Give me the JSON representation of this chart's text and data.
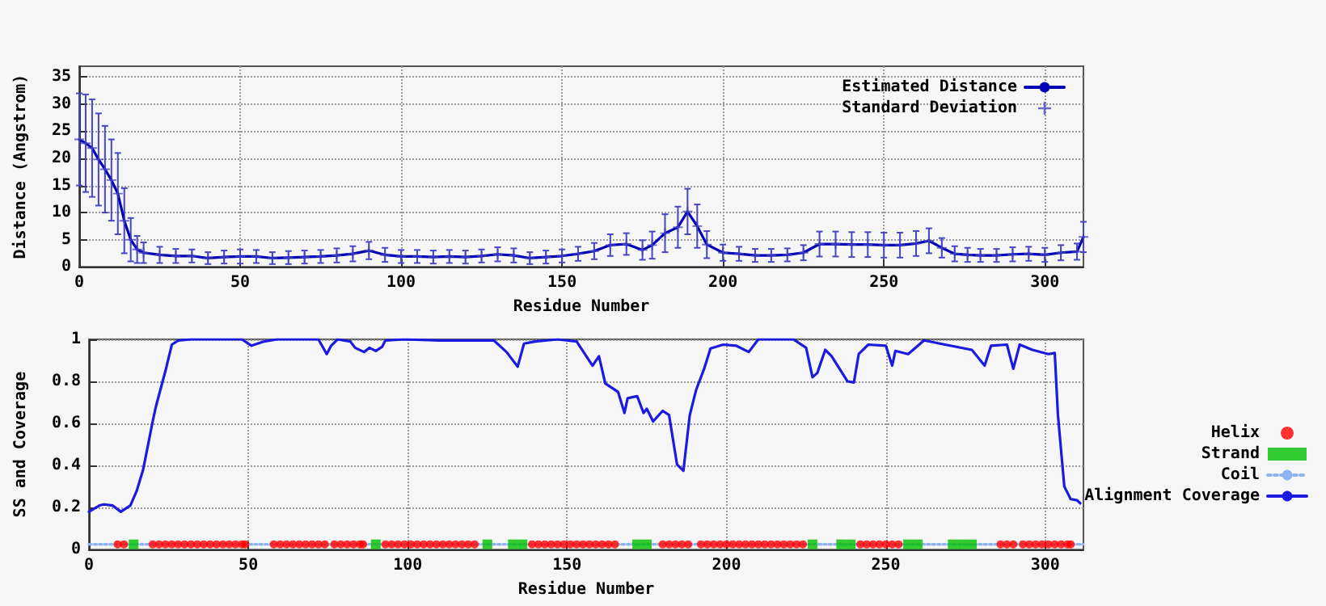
{
  "chart_data": [
    {
      "type": "line",
      "xlabel": "Residue Number",
      "ylabel": "Distance (Angstrom)",
      "xlim": [
        0,
        312
      ],
      "xticks": [
        0,
        50,
        100,
        150,
        200,
        250,
        300
      ],
      "ylim": [
        0,
        37
      ],
      "yticks": [
        0,
        5,
        10,
        15,
        20,
        25,
        30,
        35
      ],
      "grid": true,
      "legend": "top right",
      "series": [
        {
          "name": "Estimated Distance",
          "color": "#0000b4",
          "marker": "none",
          "x": [
            0,
            2,
            4,
            6,
            8,
            10,
            12,
            14,
            16,
            18,
            20,
            25,
            30,
            35,
            40,
            45,
            50,
            55,
            60,
            65,
            70,
            75,
            80,
            85,
            90,
            95,
            100,
            105,
            110,
            115,
            120,
            125,
            130,
            135,
            140,
            145,
            150,
            155,
            160,
            165,
            170,
            175,
            178,
            182,
            186,
            189,
            192,
            195,
            200,
            205,
            210,
            215,
            220,
            225,
            230,
            235,
            240,
            245,
            250,
            255,
            260,
            264,
            268,
            272,
            276,
            280,
            285,
            290,
            295,
            300,
            305,
            310,
            312
          ],
          "values": [
            23.5,
            22.8,
            21.9,
            19.8,
            18,
            16,
            13.5,
            8.5,
            5,
            3.2,
            2.6,
            2.2,
            2.0,
            2.0,
            1.6,
            1.8,
            1.9,
            1.9,
            1.6,
            1.7,
            1.8,
            1.9,
            2.1,
            2.4,
            3.0,
            2.2,
            1.9,
            1.9,
            1.8,
            1.9,
            1.8,
            2.0,
            2.3,
            2.1,
            1.6,
            1.8,
            2.0,
            2.4,
            2.9,
            4.0,
            4.2,
            3.1,
            4.0,
            6.2,
            7.3,
            10.2,
            7.5,
            4.1,
            2.6,
            2.4,
            2.1,
            2.1,
            2.2,
            2.6,
            4.2,
            4.2,
            4.1,
            4.1,
            4.0,
            4.0,
            4.3,
            4.8,
            3.5,
            2.4,
            2.2,
            2.1,
            2.1,
            2.3,
            2.4,
            2.2,
            2.6,
            2.8,
            5.5
          ]
        },
        {
          "name": "Standard Deviation",
          "type": "scatter",
          "color": "#4646c4",
          "marker": "cross",
          "x": [
            0,
            2,
            4,
            6,
            8,
            10,
            12,
            14,
            16,
            18,
            20,
            25,
            30,
            35,
            40,
            45,
            50,
            55,
            60,
            65,
            70,
            75,
            80,
            85,
            90,
            95,
            100,
            105,
            110,
            115,
            120,
            125,
            130,
            135,
            140,
            145,
            150,
            155,
            160,
            165,
            170,
            175,
            178,
            182,
            186,
            189,
            192,
            195,
            200,
            205,
            210,
            215,
            220,
            225,
            230,
            235,
            240,
            245,
            250,
            255,
            260,
            264,
            268,
            272,
            276,
            280,
            285,
            290,
            295,
            300,
            305,
            310,
            312
          ],
          "values": [
            23.5,
            22.8,
            21.9,
            19.8,
            18,
            16,
            13.5,
            8.5,
            5,
            3.2,
            2.6,
            2.2,
            2.0,
            2.0,
            1.6,
            1.8,
            1.9,
            1.9,
            1.6,
            1.7,
            1.8,
            1.9,
            2.1,
            2.4,
            3.0,
            2.2,
            1.9,
            1.9,
            1.8,
            1.9,
            1.8,
            2.0,
            2.3,
            2.1,
            1.6,
            1.8,
            2.0,
            2.4,
            2.9,
            4.0,
            4.2,
            3.1,
            4.0,
            6.2,
            7.3,
            10.2,
            7.5,
            4.1,
            2.6,
            2.4,
            2.1,
            2.1,
            2.2,
            2.6,
            4.2,
            4.2,
            4.1,
            4.1,
            4.0,
            4.0,
            4.3,
            4.8,
            3.5,
            2.4,
            2.2,
            2.1,
            2.1,
            2.3,
            2.4,
            2.2,
            2.6,
            2.8,
            5.5
          ],
          "errors": [
            8.5,
            9,
            9,
            8.5,
            8,
            7.5,
            7.5,
            6,
            4,
            2.5,
            1.9,
            1.5,
            1.3,
            1.2,
            1.1,
            1.2,
            1.3,
            1.2,
            1.1,
            1.2,
            1.2,
            1.2,
            1.3,
            1.4,
            1.6,
            1.3,
            1.2,
            1.2,
            1.2,
            1.2,
            1.2,
            1.2,
            1.3,
            1.3,
            1.1,
            1.2,
            1.2,
            1.3,
            1.5,
            2.0,
            2.0,
            1.8,
            2.5,
            3.5,
            3.8,
            4.2,
            4,
            2.5,
            1.5,
            1.3,
            1.2,
            1.2,
            1.2,
            1.4,
            2.3,
            2.3,
            2.3,
            2.3,
            2.3,
            2.3,
            2.3,
            2.3,
            1.8,
            1.4,
            1.3,
            1.2,
            1.2,
            1.3,
            1.3,
            1.3,
            1.4,
            1.5,
            2.8
          ]
        }
      ]
    },
    {
      "type": "line",
      "xlabel": "Residue Number",
      "ylabel": "SS and Coverage",
      "xlim": [
        0,
        312
      ],
      "xticks": [
        0,
        50,
        100,
        150,
        200,
        250,
        300
      ],
      "ylim": [
        0,
        1
      ],
      "yticks": [
        0,
        0.2,
        0.4,
        0.6,
        0.8,
        1
      ],
      "grid": true,
      "legend": "right",
      "series": [
        {
          "name": "Helix",
          "type": "scatter",
          "color": "#ff0000",
          "marker": "circle",
          "x": [
            9,
            11,
            20,
            22,
            24,
            26,
            28,
            30,
            32,
            34,
            36,
            38,
            40,
            42,
            44,
            46,
            48,
            49,
            58,
            60,
            62,
            64,
            66,
            68,
            70,
            72,
            74,
            77,
            79,
            81,
            83,
            85,
            86,
            93,
            95,
            97,
            99,
            101,
            103,
            105,
            107,
            109,
            111,
            113,
            115,
            117,
            119,
            121,
            139,
            141,
            143,
            145,
            147,
            149,
            151,
            153,
            155,
            157,
            159,
            161,
            163,
            165,
            180,
            182,
            184,
            186,
            188,
            192,
            194,
            196,
            198,
            200,
            202,
            204,
            206,
            208,
            210,
            212,
            214,
            216,
            218,
            220,
            222,
            224,
            242,
            244,
            246,
            248,
            250,
            252,
            254,
            286,
            288,
            290,
            293,
            295,
            297,
            299,
            301,
            303,
            305,
            307,
            308
          ],
          "values": [
            0.025,
            0.025,
            0.025,
            0.025,
            0.025,
            0.025,
            0.025,
            0.025,
            0.025,
            0.025,
            0.025,
            0.025,
            0.025,
            0.025,
            0.025,
            0.025,
            0.025,
            0.025,
            0.025,
            0.025,
            0.025,
            0.025,
            0.025,
            0.025,
            0.025,
            0.025,
            0.025,
            0.025,
            0.025,
            0.025,
            0.025,
            0.025,
            0.025,
            0.025,
            0.025,
            0.025,
            0.025,
            0.025,
            0.025,
            0.025,
            0.025,
            0.025,
            0.025,
            0.025,
            0.025,
            0.025,
            0.025,
            0.025,
            0.025,
            0.025,
            0.025,
            0.025,
            0.025,
            0.025,
            0.025,
            0.025,
            0.025,
            0.025,
            0.025,
            0.025,
            0.025,
            0.025,
            0.025,
            0.025,
            0.025,
            0.025,
            0.025,
            0.025,
            0.025,
            0.025,
            0.025,
            0.025,
            0.025,
            0.025,
            0.025,
            0.025,
            0.025,
            0.025,
            0.025,
            0.025,
            0.025,
            0.025,
            0.025,
            0.025,
            0.025,
            0.025,
            0.025,
            0.025,
            0.025,
            0.025,
            0.025,
            0.025,
            0.025,
            0.025,
            0.025,
            0.025,
            0.025,
            0.025,
            0.025,
            0.025,
            0.025,
            0.025,
            0.025
          ]
        },
        {
          "name": "Strand",
          "type": "scatter",
          "color": "#00c000",
          "marker": "square",
          "x": [
            14,
            90,
            125,
            133,
            136,
            172,
            175,
            227,
            236,
            239,
            257,
            260,
            271,
            274,
            277
          ],
          "values": [
            0.025,
            0.025,
            0.025,
            0.025,
            0.025,
            0.025,
            0.025,
            0.025,
            0.025,
            0.025,
            0.025,
            0.025,
            0.025,
            0.025,
            0.025
          ]
        },
        {
          "name": "Coil",
          "color": "#8cb4ee",
          "marker": "none",
          "line_style": "dotted",
          "x": [
            0,
            312
          ],
          "values": [
            0.025,
            0.025
          ]
        },
        {
          "name": "Alignment Coverage",
          "color": "#1a1ae0",
          "marker": "none",
          "x": [
            0,
            3.3,
            4.7,
            7.4,
            10,
            13,
            15,
            17,
            20,
            21,
            24,
            26,
            28,
            32,
            48,
            51,
            55,
            59,
            72,
            74.6,
            76,
            78,
            82,
            83.5,
            86.3,
            88,
            90,
            92,
            93,
            99,
            110,
            127,
            131,
            134.5,
            136.5,
            140,
            147,
            153,
            158,
            160,
            162,
            166,
            168,
            169,
            172,
            174,
            175,
            177,
            180,
            182,
            184.5,
            186.5,
            188.5,
            190.5,
            193,
            195,
            199,
            203,
            207,
            210,
            221,
            225,
            227,
            228.5,
            231,
            233,
            238,
            240,
            241.5,
            244.5,
            250,
            252,
            253,
            257,
            262,
            267,
            277,
            281,
            283,
            288,
            290,
            292,
            296,
            301,
            303,
            304,
            306,
            308,
            310,
            311
          ],
          "values": [
            0.18,
            0.21,
            0.215,
            0.21,
            0.18,
            0.21,
            0.28,
            0.38,
            0.61,
            0.68,
            0.85,
            0.975,
            0.995,
            1,
            1,
            0.97,
            0.99,
            1,
            1,
            0.93,
            0.97,
            1,
            0.99,
            0.96,
            0.94,
            0.96,
            0.945,
            0.965,
            0.995,
            1,
            0.995,
            0.995,
            0.94,
            0.87,
            0.98,
            0.99,
            1,
            0.99,
            0.875,
            0.92,
            0.79,
            0.75,
            0.65,
            0.72,
            0.73,
            0.65,
            0.67,
            0.61,
            0.66,
            0.64,
            0.405,
            0.375,
            0.64,
            0.76,
            0.86,
            0.957,
            0.975,
            0.97,
            0.94,
            1,
            1,
            0.96,
            0.82,
            0.84,
            0.95,
            0.92,
            0.8,
            0.795,
            0.93,
            0.975,
            0.97,
            0.875,
            0.945,
            0.93,
            0.995,
            0.98,
            0.95,
            0.875,
            0.97,
            0.975,
            0.86,
            0.975,
            0.95,
            0.93,
            0.935,
            0.64,
            0.3,
            0.24,
            0.235,
            0.22
          ]
        }
      ]
    }
  ]
}
